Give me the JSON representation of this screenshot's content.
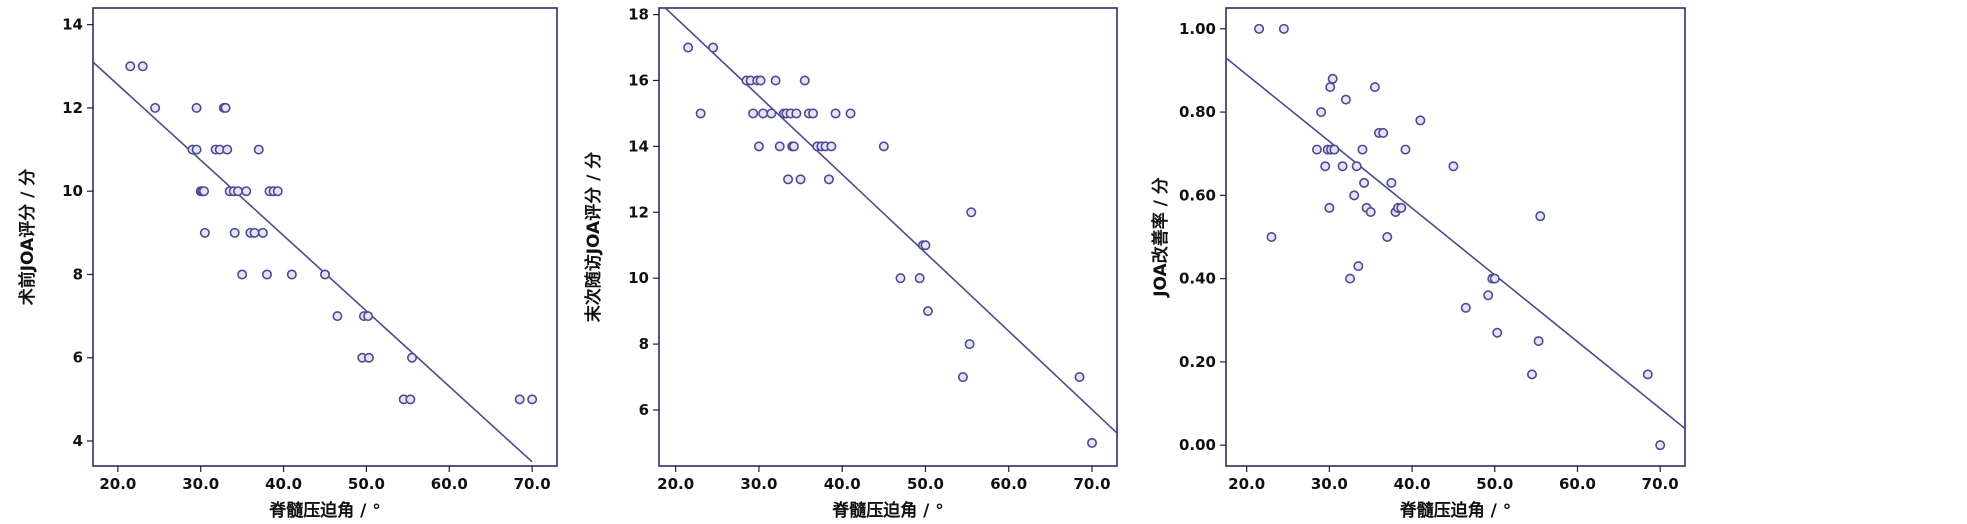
{
  "chart_data": [
    {
      "type": "scatter",
      "xlabel": "脊髓压迫角 / °",
      "ylabel": "术前JOA评分 / 分",
      "xlim": [
        17,
        73
      ],
      "ylim": [
        3.4,
        14.4
      ],
      "xticks": [
        "20.0",
        "30.0",
        "40.0",
        "50.0",
        "60.0",
        "70.0"
      ],
      "xtick_values": [
        20,
        30,
        40,
        50,
        60,
        70
      ],
      "yticks": [
        "4",
        "6",
        "8",
        "10",
        "12",
        "14"
      ],
      "ytick_values": [
        4,
        6,
        8,
        10,
        12,
        14
      ],
      "grid": false,
      "colors": {
        "marker": "#4a4a9a",
        "line": "#4a4a9a",
        "frame": "#2b2b80"
      },
      "points": [
        [
          21.5,
          13
        ],
        [
          23,
          13
        ],
        [
          24.5,
          12
        ],
        [
          29,
          11
        ],
        [
          29.5,
          12
        ],
        [
          29.5,
          11
        ],
        [
          30,
          10
        ],
        [
          30.2,
          10
        ],
        [
          30.4,
          10
        ],
        [
          30.5,
          9
        ],
        [
          31.8,
          11
        ],
        [
          32.3,
          11
        ],
        [
          32.8,
          12
        ],
        [
          33,
          12
        ],
        [
          33.2,
          11
        ],
        [
          33.5,
          10
        ],
        [
          34,
          10
        ],
        [
          34.1,
          9
        ],
        [
          34.5,
          10
        ],
        [
          35,
          8
        ],
        [
          35.5,
          10
        ],
        [
          36,
          9
        ],
        [
          36.5,
          9
        ],
        [
          37,
          11
        ],
        [
          37.5,
          9
        ],
        [
          38,
          8
        ],
        [
          38.3,
          10
        ],
        [
          38.8,
          10
        ],
        [
          39.3,
          10
        ],
        [
          41,
          8
        ],
        [
          45,
          8
        ],
        [
          46.5,
          7
        ],
        [
          49.5,
          6
        ],
        [
          49.7,
          7
        ],
        [
          50.2,
          7
        ],
        [
          50.3,
          6
        ],
        [
          54.5,
          5
        ],
        [
          55.3,
          5
        ],
        [
          55.5,
          6
        ],
        [
          68.5,
          5
        ],
        [
          70,
          5
        ]
      ],
      "trendline": [
        [
          17,
          13.1
        ],
        [
          70,
          3.5
        ]
      ]
    },
    {
      "type": "scatter",
      "xlabel": "脊髓压迫角 / °",
      "ylabel": "末次随访JOA评分 / 分",
      "xlim": [
        18,
        73
      ],
      "ylim": [
        4.3,
        18.2
      ],
      "xticks": [
        "20.0",
        "30.0",
        "40.0",
        "50.0",
        "60.0",
        "70.0"
      ],
      "xtick_values": [
        20,
        30,
        40,
        50,
        60,
        70
      ],
      "yticks": [
        "6",
        "8",
        "10",
        "12",
        "14",
        "16",
        "18"
      ],
      "ytick_values": [
        6,
        8,
        10,
        12,
        14,
        16,
        18
      ],
      "grid": false,
      "colors": {
        "marker": "#4a4a9a",
        "line": "#4a4a9a",
        "frame": "#2b2b80"
      },
      "points": [
        [
          21.5,
          17
        ],
        [
          23,
          15
        ],
        [
          24.5,
          17
        ],
        [
          28.5,
          16
        ],
        [
          29,
          16
        ],
        [
          29.3,
          15
        ],
        [
          29.8,
          16
        ],
        [
          30,
          14
        ],
        [
          30.2,
          16
        ],
        [
          30.5,
          15
        ],
        [
          31.5,
          15
        ],
        [
          32,
          16
        ],
        [
          32.5,
          14
        ],
        [
          33,
          15
        ],
        [
          33.3,
          15
        ],
        [
          33.5,
          13
        ],
        [
          33.8,
          15
        ],
        [
          34,
          14
        ],
        [
          34.2,
          14
        ],
        [
          34.5,
          15
        ],
        [
          35,
          13
        ],
        [
          35.5,
          16
        ],
        [
          36,
          15
        ],
        [
          36.5,
          15
        ],
        [
          37,
          14
        ],
        [
          37.5,
          14
        ],
        [
          38,
          14
        ],
        [
          38.4,
          13
        ],
        [
          38.7,
          14
        ],
        [
          39.2,
          15
        ],
        [
          41,
          15
        ],
        [
          45,
          14
        ],
        [
          47,
          10
        ],
        [
          49.3,
          10
        ],
        [
          49.7,
          11
        ],
        [
          50,
          11
        ],
        [
          50.3,
          9
        ],
        [
          54.5,
          7
        ],
        [
          55.3,
          8
        ],
        [
          55.5,
          12
        ],
        [
          68.5,
          7
        ],
        [
          70,
          5
        ]
      ],
      "trendline": [
        [
          17.5,
          18.5
        ],
        [
          73,
          5.3
        ]
      ]
    },
    {
      "type": "scatter",
      "xlabel": "脊髓压迫角 / °",
      "ylabel": "JOA改善率 / 分",
      "xlim": [
        17.5,
        73
      ],
      "ylim": [
        -0.05,
        1.05
      ],
      "xticks": [
        "20.0",
        "30.0",
        "40.0",
        "50.0",
        "60.0",
        "70.0"
      ],
      "xtick_values": [
        20,
        30,
        40,
        50,
        60,
        70
      ],
      "yticks": [
        "0.00",
        "0.20",
        "0.40",
        "0.60",
        "0.80",
        "1.00"
      ],
      "ytick_values": [
        0,
        0.2,
        0.4,
        0.6,
        0.8,
        1.0
      ],
      "grid": false,
      "colors": {
        "marker": "#4a4a9a",
        "line": "#4a4a9a",
        "frame": "#2b2b80"
      },
      "points": [
        [
          21.5,
          1.0
        ],
        [
          23,
          0.5
        ],
        [
          24.5,
          1.0
        ],
        [
          28.5,
          0.71
        ],
        [
          29,
          0.8
        ],
        [
          29.5,
          0.67
        ],
        [
          29.8,
          0.71
        ],
        [
          30,
          0.57
        ],
        [
          30.1,
          0.86
        ],
        [
          30.2,
          0.71
        ],
        [
          30.4,
          0.88
        ],
        [
          30.6,
          0.71
        ],
        [
          31.6,
          0.67
        ],
        [
          32,
          0.83
        ],
        [
          32.5,
          0.4
        ],
        [
          33,
          0.6
        ],
        [
          33.3,
          0.67
        ],
        [
          33.5,
          0.43
        ],
        [
          34,
          0.71
        ],
        [
          34.2,
          0.63
        ],
        [
          34.5,
          0.57
        ],
        [
          35,
          0.56
        ],
        [
          35.5,
          0.86
        ],
        [
          36,
          0.75
        ],
        [
          36.5,
          0.75
        ],
        [
          37,
          0.5
        ],
        [
          37.5,
          0.63
        ],
        [
          38,
          0.56
        ],
        [
          38.3,
          0.57
        ],
        [
          38.7,
          0.57
        ],
        [
          39.2,
          0.71
        ],
        [
          41,
          0.78
        ],
        [
          45,
          0.67
        ],
        [
          46.5,
          0.33
        ],
        [
          49.2,
          0.36
        ],
        [
          49.7,
          0.4
        ],
        [
          50,
          0.4
        ],
        [
          50.3,
          0.27
        ],
        [
          54.5,
          0.17
        ],
        [
          55.3,
          0.25
        ],
        [
          55.5,
          0.55
        ],
        [
          68.5,
          0.17
        ],
        [
          70,
          0.0
        ]
      ],
      "trendline": [
        [
          17.5,
          0.93
        ],
        [
          73,
          0.04
        ]
      ]
    }
  ]
}
